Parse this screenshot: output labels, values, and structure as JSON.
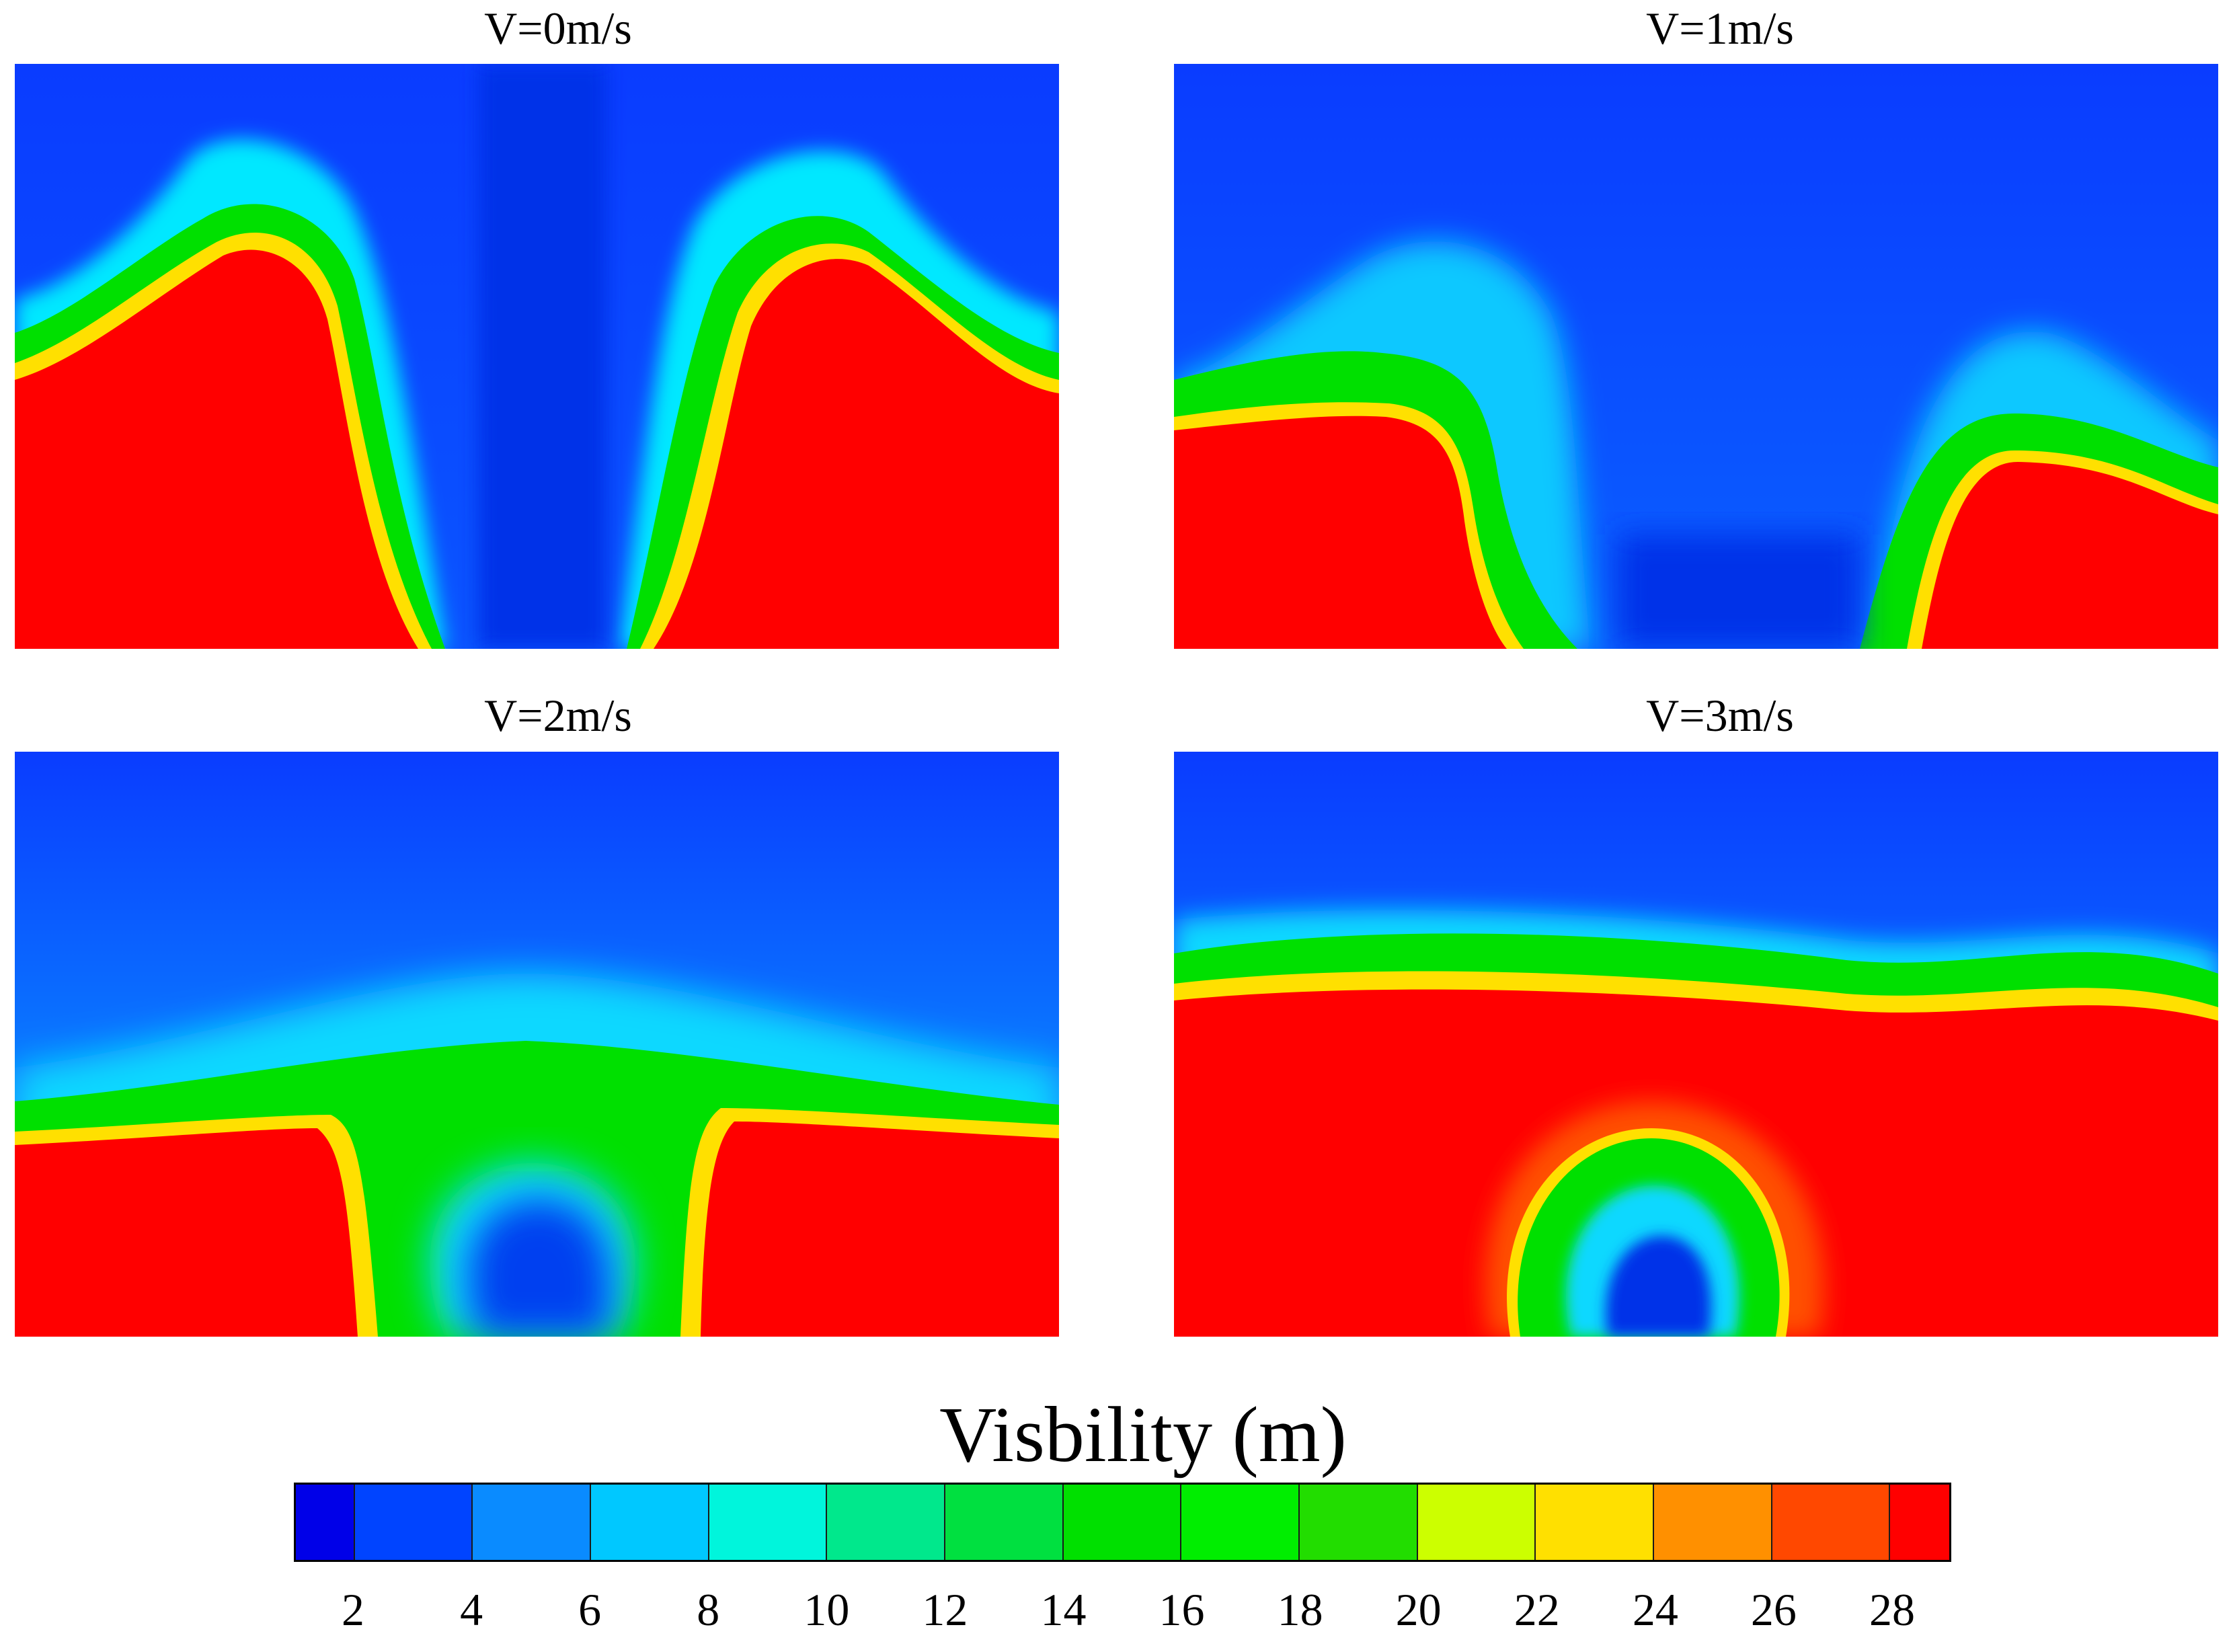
{
  "chart_data": {
    "type": "heatmap",
    "colorbar": {
      "title": "Visbility (m)",
      "tick_labels": [
        "2",
        "4",
        "6",
        "8",
        "10",
        "12",
        "14",
        "16",
        "18",
        "20",
        "22",
        "24",
        "26",
        "28"
      ],
      "levels": [
        0,
        2,
        4,
        6,
        8,
        10,
        12,
        14,
        16,
        18,
        20,
        22,
        24,
        26,
        28,
        30
      ],
      "colors": [
        "#0000e8",
        "#0044ff",
        "#0a8bff",
        "#00c8ff",
        "#00f5dc",
        "#00e88c",
        "#00e040",
        "#00e000",
        "#00ee00",
        "#22dd00",
        "#ccff00",
        "#ffe000",
        "#ff9000",
        "#ff4800",
        "#ff0000"
      ]
    },
    "panels": [
      {
        "title": "V=0m/s",
        "regions": [
          {
            "shape": "left-plume",
            "max_visibility": 30
          },
          {
            "shape": "right-plume",
            "max_visibility": 30
          },
          {
            "shape": "center-column",
            "min_visibility": 0
          }
        ]
      },
      {
        "title": "V=1m/s",
        "regions": [
          {
            "shape": "left-block",
            "max_visibility": 30
          },
          {
            "shape": "right-block",
            "max_visibility": 30
          }
        ]
      },
      {
        "title": "V=2m/s",
        "regions": [
          {
            "shape": "lower-layer-with-arch",
            "max_visibility": 30
          }
        ]
      },
      {
        "title": "V=3m/s",
        "regions": [
          {
            "shape": "lower-layer-with-dome",
            "max_visibility": 30
          }
        ]
      }
    ]
  }
}
